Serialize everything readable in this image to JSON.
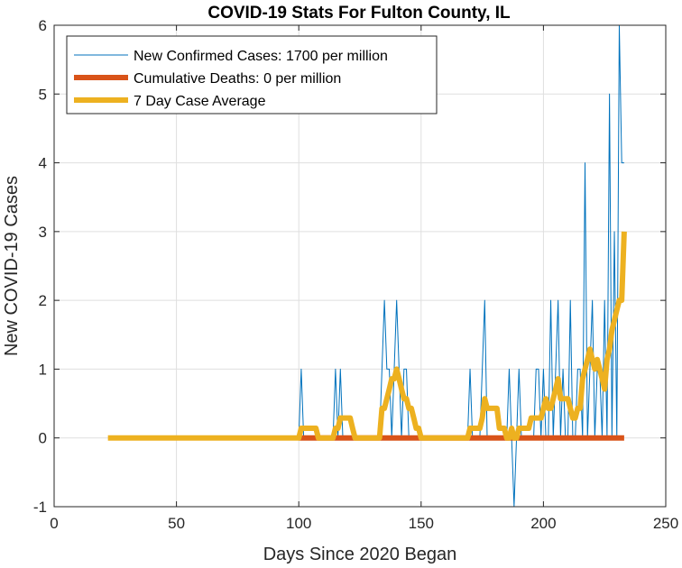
{
  "chart_data": {
    "type": "line",
    "title": "COVID-19 Stats For Fulton County, IL",
    "xlabel": "Days Since 2020 Began",
    "ylabel": "New COVID-19 Cases",
    "xlim": [
      0,
      250
    ],
    "ylim": [
      -1,
      6
    ],
    "xticks": [
      0,
      50,
      100,
      150,
      200,
      250
    ],
    "yticks": [
      -1,
      0,
      1,
      2,
      3,
      4,
      5,
      6
    ],
    "grid": true,
    "legend_position": "top-left",
    "series": [
      {
        "name": "New Confirmed Cases: 1700 per million",
        "color": "#0072BD",
        "style": "thin",
        "x": [
          100,
          101,
          102,
          114,
          115,
          116,
          117,
          118,
          133,
          134,
          135,
          136,
          137,
          138,
          139,
          140,
          141,
          142,
          143,
          144,
          145,
          146,
          169,
          170,
          171,
          174,
          175,
          176,
          177,
          178,
          185,
          186,
          187,
          188,
          189,
          190,
          191,
          196,
          197,
          198,
          199,
          200,
          201,
          202,
          203,
          204,
          205,
          206,
          207,
          208,
          209,
          210,
          211,
          212,
          213,
          214,
          215,
          216,
          217,
          218,
          219,
          220,
          221,
          222,
          223,
          224,
          225,
          226,
          227,
          228,
          229,
          230,
          231,
          232,
          233
        ],
        "y": [
          0,
          1,
          0,
          0,
          1,
          0,
          1,
          0,
          0,
          1,
          2,
          1,
          1,
          0,
          1,
          2,
          1,
          0,
          1,
          1,
          0,
          0,
          0,
          1,
          0,
          0,
          1,
          2,
          0,
          0,
          0,
          1,
          0,
          -1,
          0,
          1,
          0,
          0,
          1,
          1,
          0,
          1,
          0,
          0,
          2,
          0,
          1,
          2,
          0,
          1,
          0,
          0,
          2,
          0,
          0,
          1,
          1,
          0,
          4,
          0,
          1,
          2,
          0,
          1,
          1,
          0,
          2,
          0,
          5,
          0,
          3,
          0,
          6,
          4,
          4
        ]
      },
      {
        "name": "Cumulative Deaths: 0 per million",
        "color": "#D95319",
        "style": "thick",
        "x": [
          100,
          233
        ],
        "y": [
          0,
          0
        ]
      },
      {
        "name": "7 Day Case Average",
        "color": "#EDB120",
        "style": "thick",
        "x": [
          22,
          100,
          101,
          102,
          103,
          104,
          105,
          106,
          107,
          108,
          114,
          115,
          116,
          117,
          118,
          119,
          120,
          121,
          122,
          123,
          133,
          134,
          135,
          136,
          137,
          138,
          139,
          140,
          141,
          142,
          143,
          144,
          145,
          146,
          147,
          148,
          149,
          150,
          151,
          169,
          170,
          171,
          172,
          173,
          174,
          175,
          176,
          177,
          178,
          179,
          180,
          181,
          182,
          183,
          184,
          185,
          186,
          187,
          188,
          189,
          190,
          191,
          192,
          193,
          194,
          195,
          196,
          197,
          198,
          199,
          200,
          201,
          202,
          203,
          204,
          205,
          206,
          207,
          208,
          209,
          210,
          211,
          212,
          213,
          214,
          215,
          216,
          217,
          218,
          219,
          220,
          221,
          222,
          223,
          224,
          225,
          226,
          227,
          228,
          229,
          230,
          231,
          232,
          233
        ],
        "y": [
          0,
          0,
          0.14,
          0.14,
          0.14,
          0.14,
          0.14,
          0.14,
          0.14,
          0,
          0,
          0.14,
          0.14,
          0.29,
          0.29,
          0.29,
          0.29,
          0.29,
          0.14,
          0,
          0,
          0.43,
          0.43,
          0.57,
          0.71,
          0.86,
          0.86,
          1.0,
          0.86,
          0.71,
          0.57,
          0.57,
          0.43,
          0.43,
          0.29,
          0.14,
          0.14,
          0,
          0,
          0,
          0.14,
          0.14,
          0.14,
          0.14,
          0.14,
          0.29,
          0.57,
          0.43,
          0.43,
          0.43,
          0.43,
          0.43,
          0.14,
          0.14,
          0.14,
          0,
          0,
          0.14,
          0,
          0,
          0.14,
          0.14,
          0.14,
          0.14,
          0.14,
          0.29,
          0.29,
          0.29,
          0.29,
          0.29,
          0.43,
          0.57,
          0.43,
          0.43,
          0.57,
          0.71,
          0.86,
          0.57,
          0.57,
          0.57,
          0.57,
          0.43,
          0.29,
          0.29,
          0.43,
          0.43,
          0.86,
          1.0,
          1.14,
          1.29,
          1.14,
          1.0,
          1.14,
          1.0,
          0.86,
          0.71,
          1.14,
          1.29,
          1.57,
          1.71,
          1.86,
          2.0,
          2.0,
          3.0
        ]
      }
    ]
  }
}
